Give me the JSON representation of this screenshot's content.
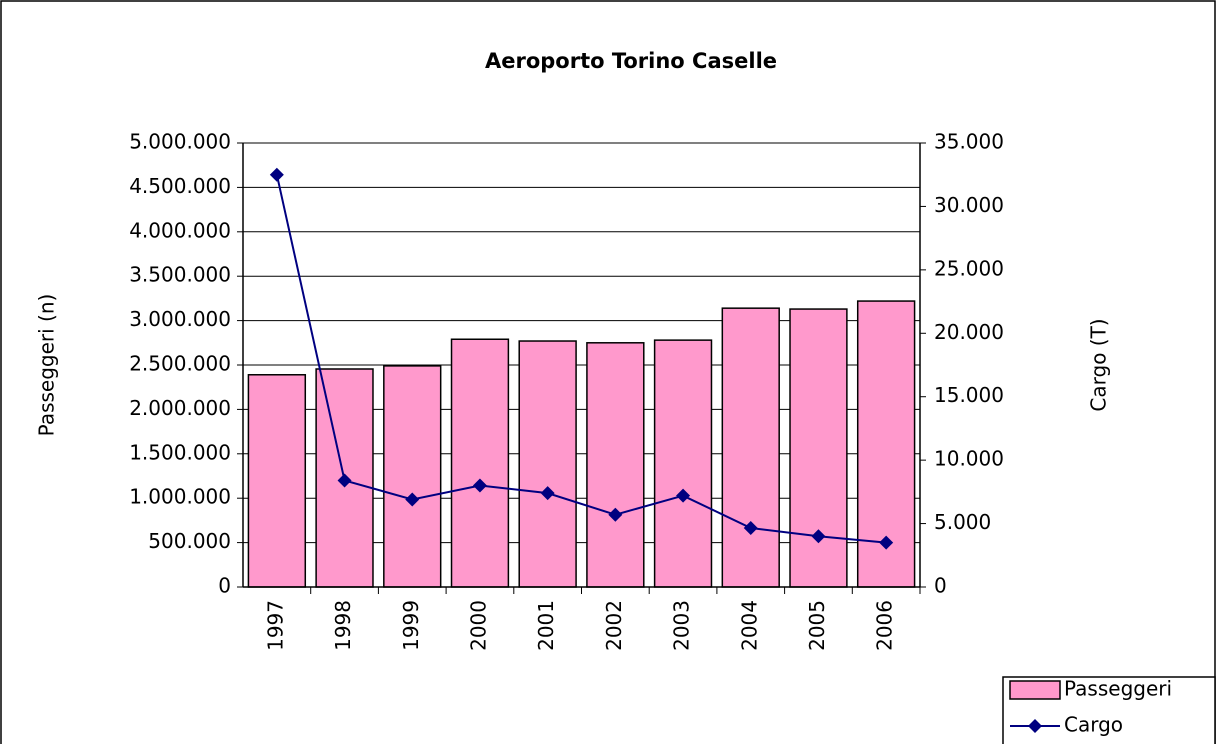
{
  "chart_data": {
    "type": "bar_line",
    "title": "Aeroporto Torino Caselle",
    "y_label": "Passeggeri (n)",
    "y2_label": "Cargo (T)",
    "categories": [
      "1997",
      "1998",
      "1999",
      "2000",
      "2001",
      "2002",
      "2003",
      "2004",
      "2005",
      "2006"
    ],
    "series": [
      {
        "name": "Passeggeri",
        "type": "bar",
        "color": "#ff99cc",
        "values": [
          2390000,
          2455000,
          2490000,
          2790000,
          2770000,
          2750000,
          2780000,
          3140000,
          3130000,
          3220000
        ]
      },
      {
        "name": "Cargo",
        "type": "line",
        "axis": "y2",
        "color": "#000080",
        "values": [
          32500,
          8400,
          6900,
          8000,
          7400,
          5700,
          7200,
          4650,
          4000,
          3500
        ]
      }
    ],
    "ylim": [
      0,
      5000000
    ],
    "yticks": [
      0,
      {
        "value": 500000,
        "label": "500.000"
      },
      {
        "value": 1000000,
        "label": "1.000.000"
      },
      {
        "value": 1500000,
        "label": "1.500.000"
      },
      {
        "value": 2000000,
        "label": "2.000.000"
      },
      {
        "value": 2500000,
        "label": "2.500.000"
      },
      {
        "value": 3000000,
        "label": "3.000.000"
      },
      {
        "value": 3500000,
        "label": "3.500.000"
      },
      {
        "value": 4000000,
        "label": "4.000.000"
      },
      {
        "value": 4500000,
        "label": "4.500.000"
      },
      {
        "value": 5000000,
        "label": "5.000.000"
      }
    ],
    "y2lim": [
      0,
      35000
    ],
    "y2ticks": [
      0,
      {
        "value": 5000,
        "label": "5.000"
      },
      {
        "value": 10000,
        "label": "10.000"
      },
      {
        "value": 15000,
        "label": "15.000"
      },
      {
        "value": 20000,
        "label": "20.000"
      },
      {
        "value": 25000,
        "label": "25.000"
      },
      {
        "value": 30000,
        "label": "30.000"
      },
      {
        "value": 35000,
        "label": "35.000"
      }
    ],
    "grid": true,
    "legend": "bottom-right"
  }
}
